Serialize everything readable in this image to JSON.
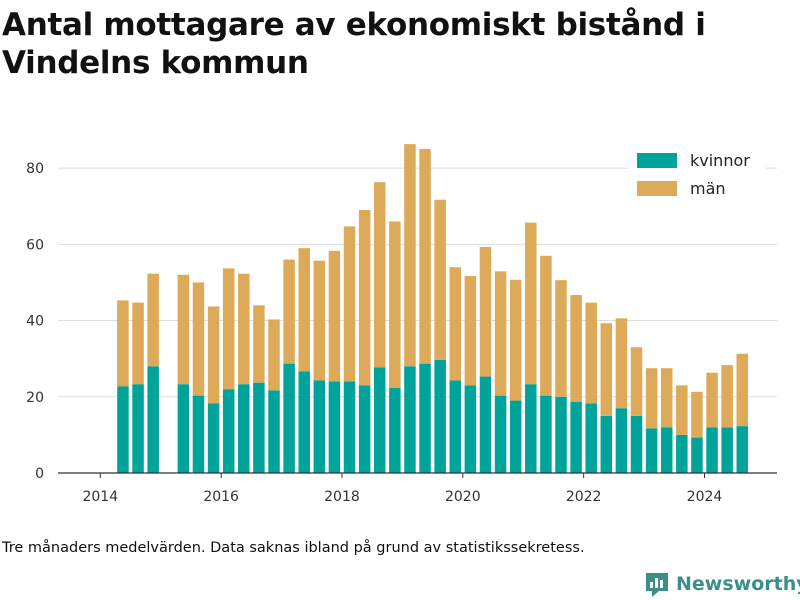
{
  "title": "Antal mottagare av ekonomiskt bistånd i Vindelns kommun",
  "footnote": "Tre månaders medelvärden. Data saknas ibland på grund av statistikssekretess.",
  "brand": {
    "name": "Newsworthy",
    "color": "#3a8f87"
  },
  "chart_data": {
    "type": "bar",
    "stacked": true,
    "grid": true,
    "legend_position": "top-right",
    "xlim": [
      2013.3,
      2025.2
    ],
    "ylim": [
      0,
      90
    ],
    "xticks": [
      2014,
      2016,
      2018,
      2020,
      2022,
      2024
    ],
    "yticks": [
      0,
      20,
      40,
      60,
      80
    ],
    "x": [
      2014.375,
      2014.625,
      2014.875,
      2015.375,
      2015.625,
      2015.875,
      2016.125,
      2016.375,
      2016.625,
      2016.875,
      2017.125,
      2017.375,
      2017.625,
      2017.875,
      2018.125,
      2018.375,
      2018.625,
      2018.875,
      2019.125,
      2019.375,
      2019.625,
      2019.875,
      2020.125,
      2020.375,
      2020.625,
      2020.875,
      2021.125,
      2021.375,
      2021.625,
      2021.875,
      2022.125,
      2022.375,
      2022.625,
      2022.875,
      2023.125,
      2023.375,
      2023.625,
      2023.875,
      2024.125,
      2024.375,
      2024.625
    ],
    "series": [
      {
        "name": "kvinnor",
        "color": "#00a39a",
        "values": [
          22.7,
          23.3,
          28.0,
          23.3,
          20.3,
          18.3,
          22.0,
          23.3,
          23.7,
          21.7,
          28.7,
          26.7,
          24.3,
          24.0,
          24.0,
          23.0,
          27.7,
          22.3,
          28.0,
          28.7,
          29.7,
          24.3,
          23.0,
          25.3,
          20.3,
          19.0,
          23.3,
          20.3,
          20.0,
          18.7,
          18.3,
          15.0,
          17.0,
          15.0,
          11.7,
          12.0,
          10.0,
          9.3,
          12.0,
          12.0,
          12.3
        ]
      },
      {
        "name": "män",
        "color": "#dcaa58",
        "values": [
          22.6,
          21.4,
          24.3,
          28.7,
          29.7,
          25.4,
          31.7,
          29.0,
          20.3,
          18.6,
          27.3,
          32.3,
          31.4,
          34.3,
          40.7,
          46.0,
          48.6,
          43.7,
          58.3,
          56.3,
          42.0,
          29.7,
          28.7,
          34.0,
          32.6,
          31.7,
          42.4,
          36.7,
          30.6,
          28.0,
          26.4,
          24.3,
          23.6,
          18.0,
          15.8,
          15.5,
          13.0,
          12.0,
          14.3,
          16.3,
          19.0
        ]
      }
    ]
  }
}
